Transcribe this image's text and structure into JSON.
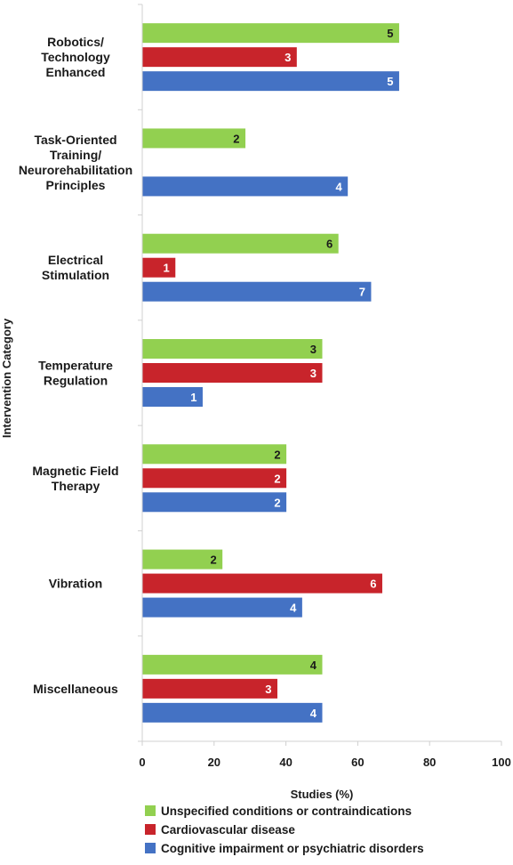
{
  "chart_data": {
    "type": "bar",
    "orientation": "horizontal",
    "categories": [
      [
        "Robotics/",
        "Technology",
        "Enhanced"
      ],
      [
        "Task-Oriented",
        "Training/",
        "Neurorehabilitation",
        "Principles"
      ],
      [
        "Electrical",
        "Stimulation"
      ],
      [
        "Temperature",
        "Regulation"
      ],
      [
        "Magnetic Field",
        "Therapy"
      ],
      [
        "Vibration"
      ],
      [
        "Miscellaneous"
      ]
    ],
    "series": [
      {
        "name": "Unspecified conditions or contraindications",
        "color": "#92d050",
        "label_color": "#1a1a1a",
        "values": [
          71.4,
          28.6,
          54.5,
          50.0,
          40.0,
          22.2,
          50.0
        ],
        "labels": [
          "5",
          "2",
          "6",
          "3",
          "2",
          "2",
          "4"
        ]
      },
      {
        "name": "Cardiovascular disease",
        "color": "#c8242b",
        "label_color": "#ffffff",
        "values": [
          42.9,
          null,
          9.1,
          50.0,
          40.0,
          66.7,
          37.5
        ],
        "labels": [
          "3",
          "",
          "1",
          "3",
          "2",
          "6",
          "3"
        ]
      },
      {
        "name": "Cognitive impairment or psychiatric disorders",
        "color": "#4472c4",
        "label_color": "#ffffff",
        "values": [
          71.4,
          57.1,
          63.6,
          16.7,
          40.0,
          44.4,
          50.0
        ],
        "labels": [
          "5",
          "4",
          "7",
          "1",
          "2",
          "4",
          "4"
        ]
      }
    ],
    "xlabel": "Studies (%)",
    "ylabel": "Intervention Category",
    "xlim": [
      0,
      100
    ],
    "xticks": [
      "0",
      "20",
      "40",
      "60",
      "80",
      "100"
    ],
    "legend_position": "bottom"
  }
}
